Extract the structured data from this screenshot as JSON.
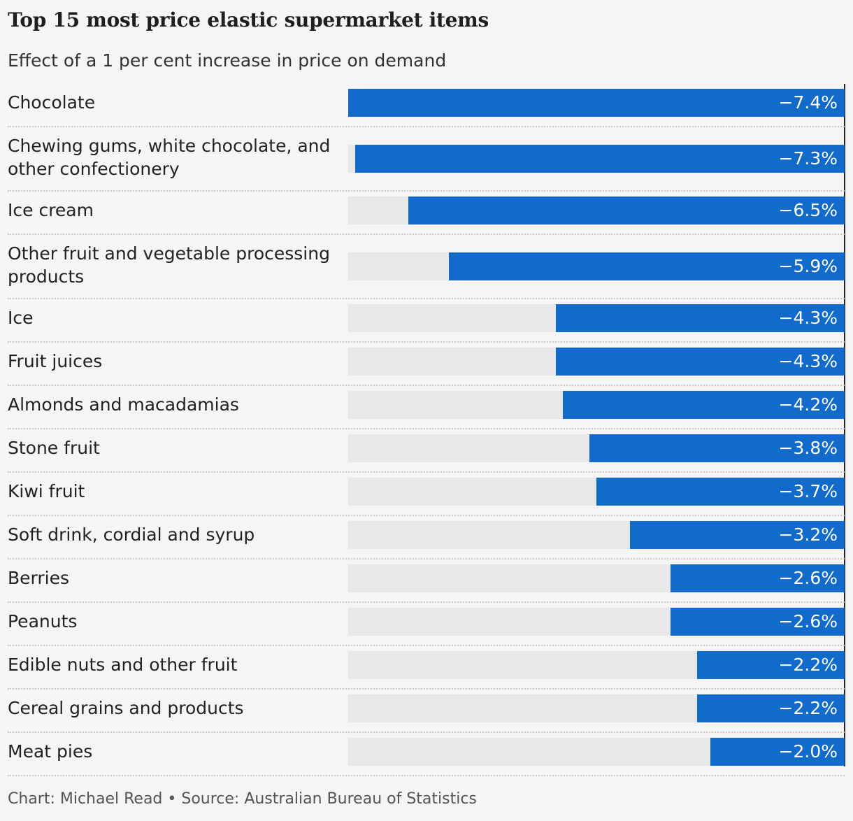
{
  "title": "Top 15 most price elastic supermarket items",
  "subtitle": "Effect of a 1 per cent increase in price on demand",
  "footer": "Chart: Michael Read • Source: Australian Bureau of Statistics",
  "colors": {
    "bar": "#126bca",
    "track": "#e8e8e8",
    "background": "#f5f5f5"
  },
  "chart_data": {
    "type": "bar",
    "orientation": "horizontal",
    "categories": [
      "Chocolate",
      "Chewing gums, white chocolate, and other confectionery",
      "Ice cream",
      "Other fruit and vegetable processing products",
      "Ice",
      "Fruit juices",
      "Almonds and macadamias",
      "Stone fruit",
      "Kiwi fruit",
      "Soft drink, cordial and syrup",
      "Berries",
      "Peanuts",
      "Edible nuts and other fruit",
      "Cereal grains and products",
      "Meat pies"
    ],
    "values": [
      -7.4,
      -7.3,
      -6.5,
      -5.9,
      -4.3,
      -4.3,
      -4.2,
      -3.8,
      -3.7,
      -3.2,
      -2.6,
      -2.6,
      -2.2,
      -2.2,
      -2.0
    ],
    "value_labels": [
      "−7.4%",
      "−7.3%",
      "−6.5%",
      "−5.9%",
      "−4.3%",
      "−4.3%",
      "−4.2%",
      "−3.8%",
      "−3.7%",
      "−3.2%",
      "−2.6%",
      "−2.6%",
      "−2.2%",
      "−2.2%",
      "−2.0%"
    ],
    "xlim": [
      -7.4,
      0
    ],
    "grid": false,
    "legend": "none"
  }
}
